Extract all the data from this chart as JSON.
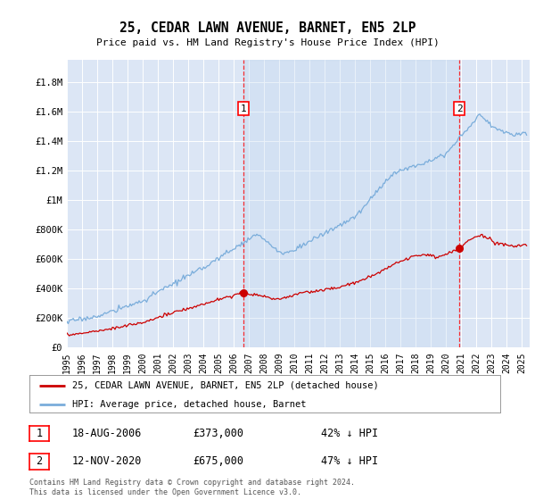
{
  "title": "25, CEDAR LAWN AVENUE, BARNET, EN5 2LP",
  "subtitle": "Price paid vs. HM Land Registry's House Price Index (HPI)",
  "ylabel_ticks": [
    "£0",
    "£200K",
    "£400K",
    "£600K",
    "£800K",
    "£1M",
    "£1.2M",
    "£1.4M",
    "£1.6M",
    "£1.8M"
  ],
  "ytick_vals": [
    0,
    200000,
    400000,
    600000,
    800000,
    1000000,
    1200000,
    1400000,
    1600000,
    1800000
  ],
  "ylim": [
    0,
    1950000
  ],
  "xlim_start": 1995.0,
  "xlim_end": 2025.5,
  "xticks": [
    1995,
    1996,
    1997,
    1998,
    1999,
    2000,
    2001,
    2002,
    2003,
    2004,
    2005,
    2006,
    2007,
    2008,
    2009,
    2010,
    2011,
    2012,
    2013,
    2014,
    2015,
    2016,
    2017,
    2018,
    2019,
    2020,
    2021,
    2022,
    2023,
    2024,
    2025
  ],
  "background_color": "#dce6f5",
  "grid_color": "#ffffff",
  "hpi_color": "#7aaddb",
  "hpi_fill_color": "#c5d9f0",
  "price_color": "#cc0000",
  "sale1_x": 2006.622,
  "sale1_y": 373000,
  "sale2_x": 2020.876,
  "sale2_y": 675000,
  "sale1_label": "1",
  "sale2_label": "2",
  "legend_line1": "25, CEDAR LAWN AVENUE, BARNET, EN5 2LP (detached house)",
  "legend_line2": "HPI: Average price, detached house, Barnet",
  "annotation1_date": "18-AUG-2006",
  "annotation1_price": "£373,000",
  "annotation1_hpi": "42% ↓ HPI",
  "annotation2_date": "12-NOV-2020",
  "annotation2_price": "£675,000",
  "annotation2_hpi": "47% ↓ HPI",
  "footer": "Contains HM Land Registry data © Crown copyright and database right 2024.\nThis data is licensed under the Open Government Licence v3.0."
}
